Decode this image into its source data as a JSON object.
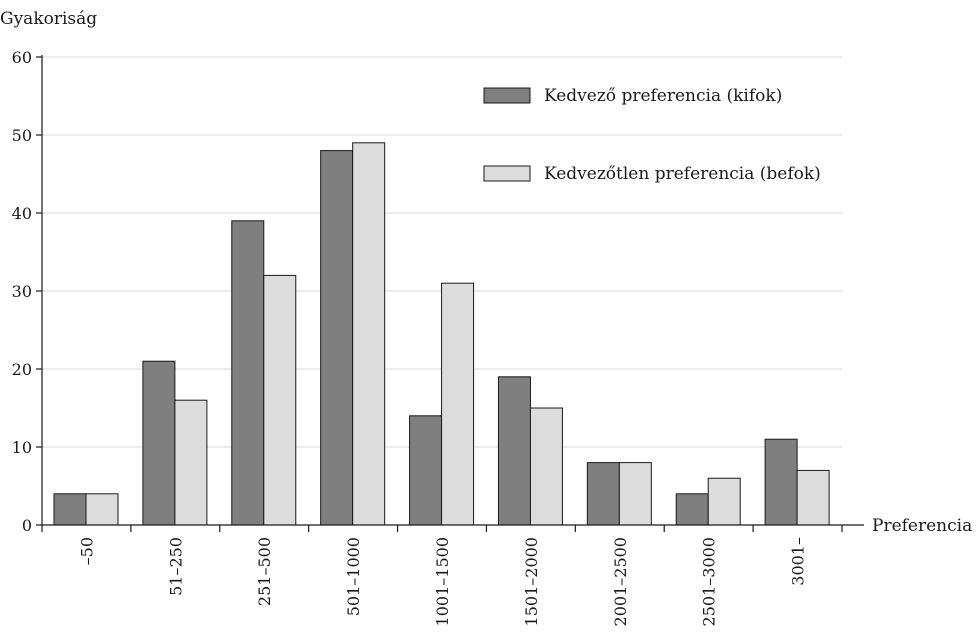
{
  "chart_data": {
    "type": "bar",
    "ylabel": "Gyakoriság",
    "xlabel": "Preferencia",
    "ylim": [
      0,
      60
    ],
    "yticks": [
      0,
      10,
      20,
      30,
      40,
      50,
      60
    ],
    "grid": true,
    "legend_position": "top-right",
    "categories": [
      "–50",
      "51–250",
      "251–500",
      "501–1000",
      "1001–1500",
      "1501–2000",
      "2001–2500",
      "2501–3000",
      "3001–"
    ],
    "series": [
      {
        "name": "Kedvező preferencia (kifok)",
        "color": "#7f7f7f",
        "values": [
          4,
          21,
          39,
          48,
          14,
          19,
          8,
          4,
          11
        ]
      },
      {
        "name": "Kedvezőtlen preferencia (befok)",
        "color": "#dcdcdc",
        "values": [
          4,
          16,
          32,
          49,
          31,
          15,
          8,
          6,
          7
        ]
      }
    ]
  }
}
